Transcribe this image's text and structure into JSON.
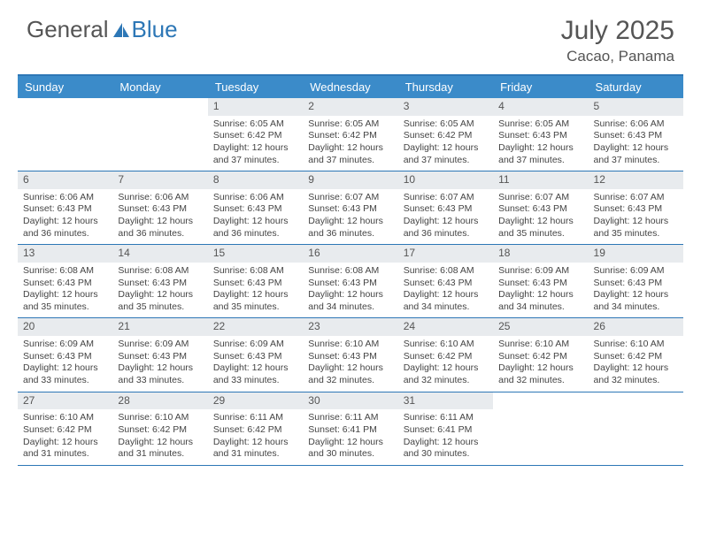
{
  "logo": {
    "part1": "General",
    "part2": "Blue"
  },
  "header": {
    "month": "July 2025",
    "location": "Cacao, Panama"
  },
  "dayNames": [
    "Sunday",
    "Monday",
    "Tuesday",
    "Wednesday",
    "Thursday",
    "Friday",
    "Saturday"
  ],
  "colors": {
    "accent": "#3b8bc9",
    "border": "#2d77b6",
    "daynum_bg": "#e8ebee",
    "text": "#444444"
  },
  "weeks": [
    [
      null,
      null,
      {
        "n": "1",
        "sr": "6:05 AM",
        "ss": "6:42 PM",
        "dl": "12 hours and 37 minutes."
      },
      {
        "n": "2",
        "sr": "6:05 AM",
        "ss": "6:42 PM",
        "dl": "12 hours and 37 minutes."
      },
      {
        "n": "3",
        "sr": "6:05 AM",
        "ss": "6:42 PM",
        "dl": "12 hours and 37 minutes."
      },
      {
        "n": "4",
        "sr": "6:05 AM",
        "ss": "6:43 PM",
        "dl": "12 hours and 37 minutes."
      },
      {
        "n": "5",
        "sr": "6:06 AM",
        "ss": "6:43 PM",
        "dl": "12 hours and 37 minutes."
      }
    ],
    [
      {
        "n": "6",
        "sr": "6:06 AM",
        "ss": "6:43 PM",
        "dl": "12 hours and 36 minutes."
      },
      {
        "n": "7",
        "sr": "6:06 AM",
        "ss": "6:43 PM",
        "dl": "12 hours and 36 minutes."
      },
      {
        "n": "8",
        "sr": "6:06 AM",
        "ss": "6:43 PM",
        "dl": "12 hours and 36 minutes."
      },
      {
        "n": "9",
        "sr": "6:07 AM",
        "ss": "6:43 PM",
        "dl": "12 hours and 36 minutes."
      },
      {
        "n": "10",
        "sr": "6:07 AM",
        "ss": "6:43 PM",
        "dl": "12 hours and 36 minutes."
      },
      {
        "n": "11",
        "sr": "6:07 AM",
        "ss": "6:43 PM",
        "dl": "12 hours and 35 minutes."
      },
      {
        "n": "12",
        "sr": "6:07 AM",
        "ss": "6:43 PM",
        "dl": "12 hours and 35 minutes."
      }
    ],
    [
      {
        "n": "13",
        "sr": "6:08 AM",
        "ss": "6:43 PM",
        "dl": "12 hours and 35 minutes."
      },
      {
        "n": "14",
        "sr": "6:08 AM",
        "ss": "6:43 PM",
        "dl": "12 hours and 35 minutes."
      },
      {
        "n": "15",
        "sr": "6:08 AM",
        "ss": "6:43 PM",
        "dl": "12 hours and 35 minutes."
      },
      {
        "n": "16",
        "sr": "6:08 AM",
        "ss": "6:43 PM",
        "dl": "12 hours and 34 minutes."
      },
      {
        "n": "17",
        "sr": "6:08 AM",
        "ss": "6:43 PM",
        "dl": "12 hours and 34 minutes."
      },
      {
        "n": "18",
        "sr": "6:09 AM",
        "ss": "6:43 PM",
        "dl": "12 hours and 34 minutes."
      },
      {
        "n": "19",
        "sr": "6:09 AM",
        "ss": "6:43 PM",
        "dl": "12 hours and 34 minutes."
      }
    ],
    [
      {
        "n": "20",
        "sr": "6:09 AM",
        "ss": "6:43 PM",
        "dl": "12 hours and 33 minutes."
      },
      {
        "n": "21",
        "sr": "6:09 AM",
        "ss": "6:43 PM",
        "dl": "12 hours and 33 minutes."
      },
      {
        "n": "22",
        "sr": "6:09 AM",
        "ss": "6:43 PM",
        "dl": "12 hours and 33 minutes."
      },
      {
        "n": "23",
        "sr": "6:10 AM",
        "ss": "6:43 PM",
        "dl": "12 hours and 32 minutes."
      },
      {
        "n": "24",
        "sr": "6:10 AM",
        "ss": "6:42 PM",
        "dl": "12 hours and 32 minutes."
      },
      {
        "n": "25",
        "sr": "6:10 AM",
        "ss": "6:42 PM",
        "dl": "12 hours and 32 minutes."
      },
      {
        "n": "26",
        "sr": "6:10 AM",
        "ss": "6:42 PM",
        "dl": "12 hours and 32 minutes."
      }
    ],
    [
      {
        "n": "27",
        "sr": "6:10 AM",
        "ss": "6:42 PM",
        "dl": "12 hours and 31 minutes."
      },
      {
        "n": "28",
        "sr": "6:10 AM",
        "ss": "6:42 PM",
        "dl": "12 hours and 31 minutes."
      },
      {
        "n": "29",
        "sr": "6:11 AM",
        "ss": "6:42 PM",
        "dl": "12 hours and 31 minutes."
      },
      {
        "n": "30",
        "sr": "6:11 AM",
        "ss": "6:41 PM",
        "dl": "12 hours and 30 minutes."
      },
      {
        "n": "31",
        "sr": "6:11 AM",
        "ss": "6:41 PM",
        "dl": "12 hours and 30 minutes."
      },
      null,
      null
    ]
  ],
  "labels": {
    "sunrise": "Sunrise:",
    "sunset": "Sunset:",
    "daylight": "Daylight:"
  }
}
